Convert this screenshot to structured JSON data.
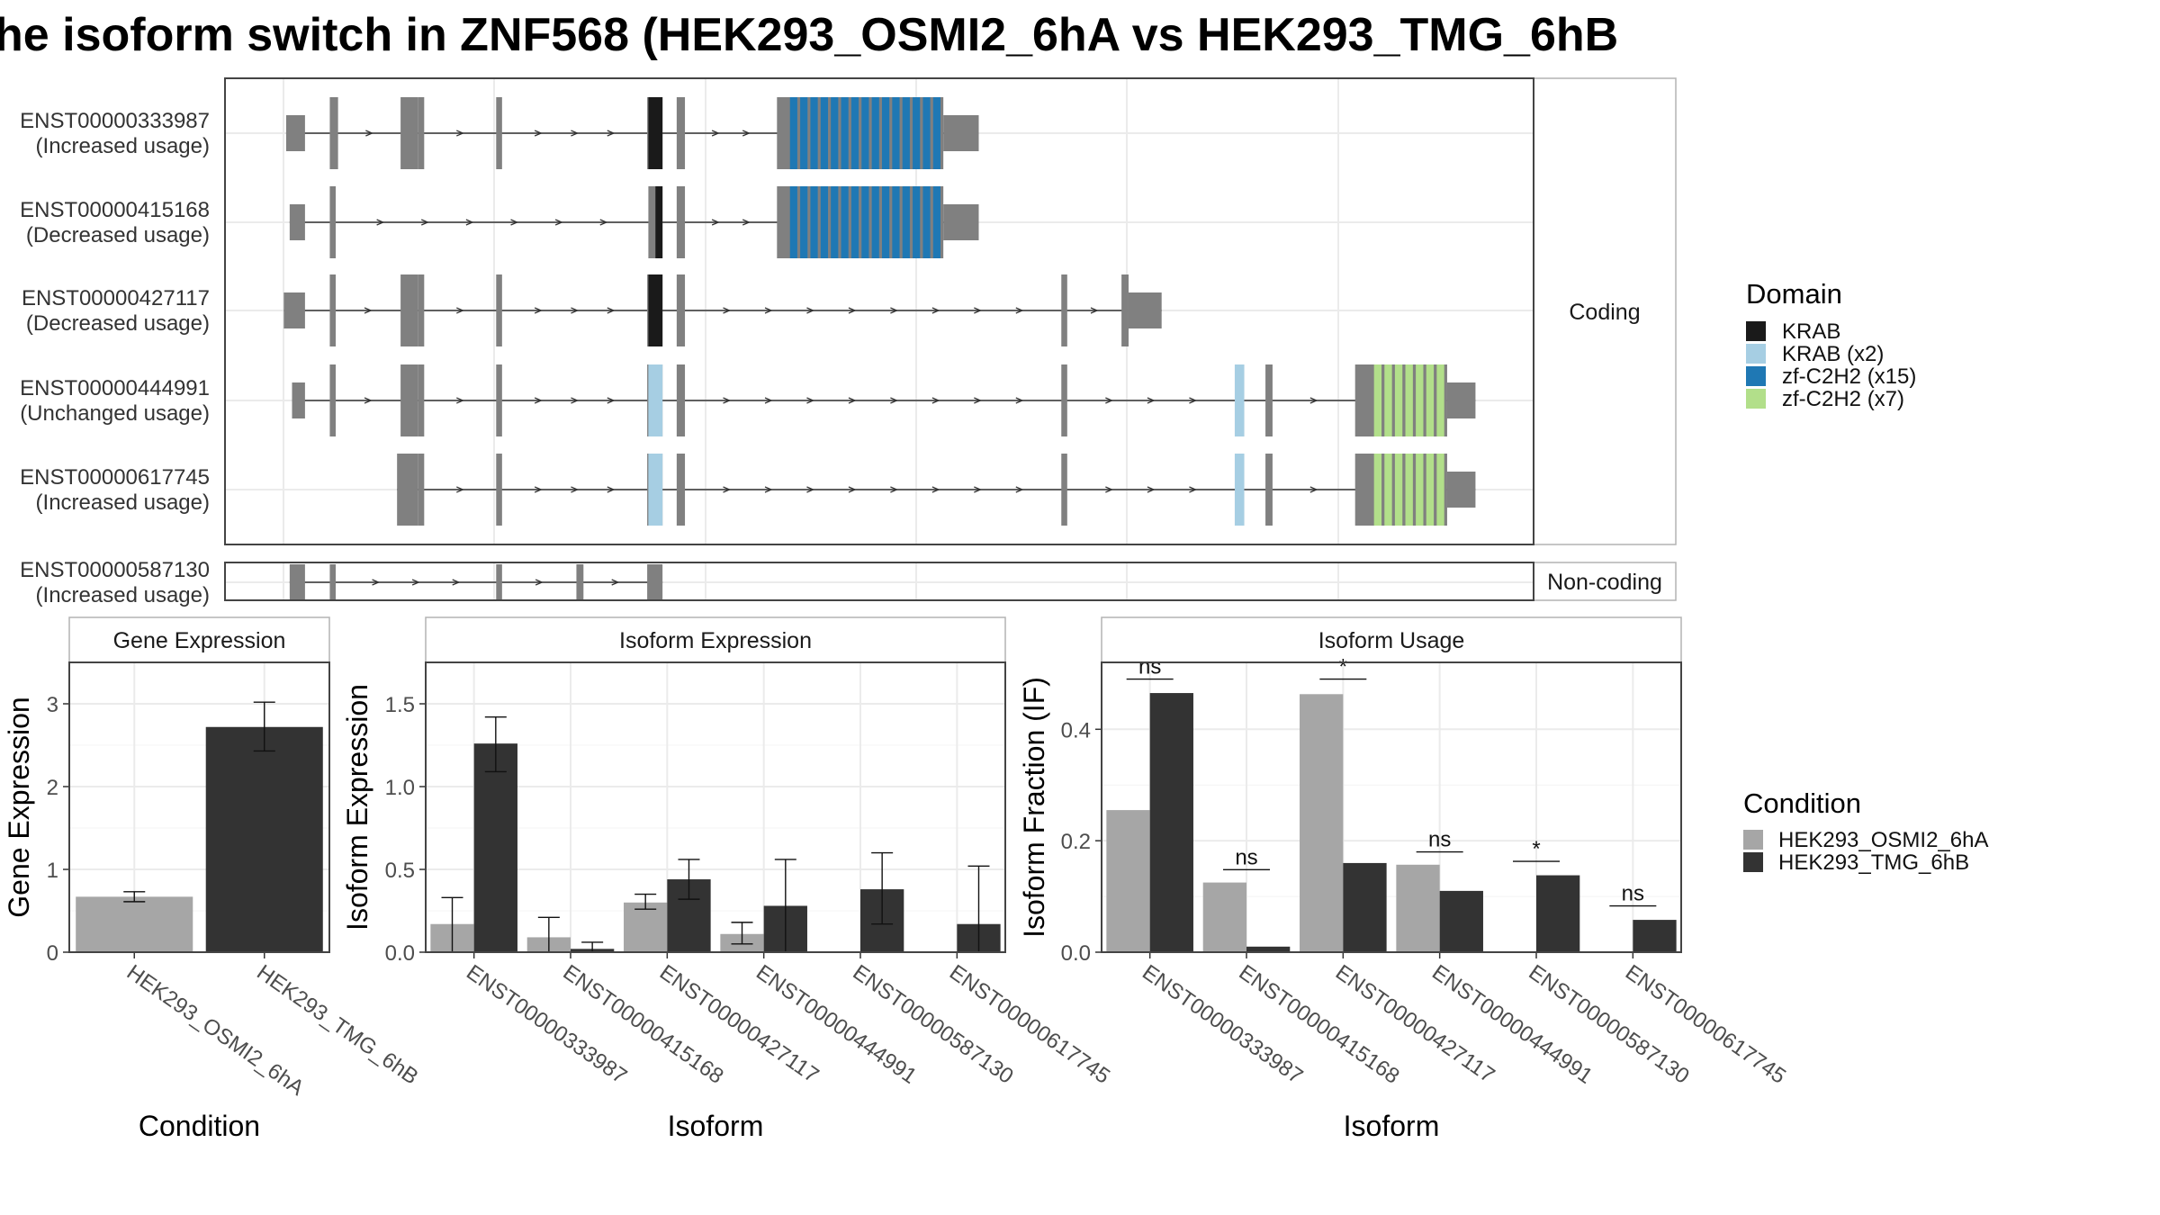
{
  "title": "he isoform switch in ZNF568 (HEK293_OSMI2_6hA vs HEK293_TMG_6hB",
  "colors": {
    "exon": "#808080",
    "panel_border": "#444444",
    "grid": "#ebebeb",
    "cond_a": "#a6a6a6",
    "cond_b": "#333333",
    "text": "#333333",
    "KRAB": "#1a1a1a",
    "KRAB (x2)": "#a6cee3",
    "zf-C2H2 (x15)": "#1f78b4",
    "zf-C2H2 (x7)": "#b2df8a"
  },
  "chart_data": [
    {
      "type": "table",
      "name": "isoform-structures",
      "x_range_units": [
        0,
        100
      ],
      "domain_legend": {
        "title": "Domain",
        "items": [
          "KRAB",
          "KRAB (x2)",
          "zf-C2H2 (x15)",
          "zf-C2H2 (x7)"
        ]
      },
      "facets": [
        "Coding",
        "Non-coding"
      ],
      "isoforms": [
        {
          "id": "ENST00000333987",
          "usage": "(Increased usage)",
          "facet": "Coding",
          "exons": [
            [
              0.3,
              1.9
            ],
            [
              4.0,
              4.7
            ],
            [
              10.0,
              11.5
            ],
            [
              11.5,
              12.0
            ],
            [
              18.1,
              18.6
            ],
            [
              30.9,
              32.2
            ],
            [
              33.4,
              34.1
            ],
            [
              41.9,
              56.0
            ],
            [
              56.0,
              59.0
            ]
          ],
          "domains": [
            {
              "name": "KRAB",
              "start": 31.0,
              "end": 32.2
            },
            {
              "name": "zf-C2H2 (x15)",
              "start": 43.0,
              "end": 56.0,
              "stripes": 15
            }
          ]
        },
        {
          "id": "ENST00000415168",
          "usage": "(Decreased usage)",
          "facet": "Coding",
          "exons": [
            [
              0.6,
              1.9
            ],
            [
              4.0,
              4.5
            ],
            [
              31.0,
              32.2
            ],
            [
              33.4,
              34.1
            ],
            [
              41.9,
              56.0
            ],
            [
              56.0,
              59.0
            ]
          ],
          "domains": [
            {
              "name": "KRAB",
              "start": 31.6,
              "end": 32.2
            },
            {
              "name": "zf-C2H2 (x15)",
              "start": 43.0,
              "end": 56.0,
              "stripes": 15
            }
          ]
        },
        {
          "id": "ENST00000427117",
          "usage": "(Decreased usage)",
          "facet": "Coding",
          "exons": [
            [
              0.1,
              1.9
            ],
            [
              4.0,
              4.5
            ],
            [
              10.0,
              11.5
            ],
            [
              11.5,
              12.0
            ],
            [
              18.1,
              18.6
            ],
            [
              30.9,
              32.2
            ],
            [
              33.4,
              34.1
            ],
            [
              66.0,
              66.5
            ],
            [
              71.1,
              71.7
            ],
            [
              71.7,
              74.5
            ]
          ],
          "domains": [
            {
              "name": "KRAB",
              "start": 31.0,
              "end": 32.2
            }
          ]
        },
        {
          "id": "ENST00000444991",
          "usage": "(Unchanged usage)",
          "facet": "Coding",
          "exons": [
            [
              0.8,
              1.9
            ],
            [
              4.0,
              4.5
            ],
            [
              10.0,
              11.5
            ],
            [
              11.5,
              12.0
            ],
            [
              18.1,
              18.6
            ],
            [
              30.9,
              32.2
            ],
            [
              33.4,
              34.1
            ],
            [
              66.0,
              66.5
            ],
            [
              80.7,
              81.5
            ],
            [
              83.3,
              83.9
            ],
            [
              90.9,
              98.7
            ],
            [
              98.7,
              101.1
            ]
          ],
          "domains": [
            {
              "name": "KRAB (x2)",
              "start": 31.0,
              "end": 32.2
            },
            {
              "name": "KRAB (x2)",
              "start": 80.7,
              "end": 81.5
            },
            {
              "name": "zf-C2H2 (x7)",
              "start": 92.5,
              "end": 98.7,
              "stripes": 7
            }
          ]
        },
        {
          "id": "ENST00000617745",
          "usage": "(Increased usage)",
          "facet": "Coding",
          "exons": [
            [
              9.7,
              11.5
            ],
            [
              11.5,
              12.0
            ],
            [
              18.1,
              18.6
            ],
            [
              30.9,
              32.2
            ],
            [
              33.4,
              34.1
            ],
            [
              66.0,
              66.5
            ],
            [
              80.7,
              81.5
            ],
            [
              83.3,
              83.9
            ],
            [
              90.9,
              98.7
            ],
            [
              98.7,
              101.1
            ]
          ],
          "domains": [
            {
              "name": "KRAB (x2)",
              "start": 31.0,
              "end": 32.2
            },
            {
              "name": "KRAB (x2)",
              "start": 80.7,
              "end": 81.5
            },
            {
              "name": "zf-C2H2 (x7)",
              "start": 92.5,
              "end": 98.7,
              "stripes": 7
            }
          ]
        },
        {
          "id": "ENST00000587130",
          "usage": "(Increased usage)",
          "facet": "Non-coding",
          "exons": [
            [
              0.6,
              1.9
            ],
            [
              4.0,
              4.5
            ],
            [
              18.1,
              18.6
            ],
            [
              24.9,
              25.5
            ],
            [
              30.9,
              32.2
            ]
          ],
          "domains": []
        }
      ]
    },
    {
      "type": "bar",
      "name": "gene-expression",
      "strip": "Gene Expression",
      "xlabel": "Condition",
      "ylabel": "Gene Expression",
      "ylim": [
        0,
        3.5
      ],
      "yticks": [
        0,
        1,
        2,
        3
      ],
      "categories": [
        "HEK293_OSMI2_6hA",
        "HEK293_TMG_6hB"
      ],
      "values": [
        0.67,
        2.72
      ],
      "errors": [
        [
          0.61,
          0.73
        ],
        [
          2.43,
          3.02
        ]
      ]
    },
    {
      "type": "bar",
      "name": "isoform-expression",
      "strip": "Isoform Expression",
      "xlabel": "Isoform",
      "ylabel": "Isoform Expression",
      "ylim": [
        0,
        1.75
      ],
      "yticks": [
        0.0,
        0.5,
        1.0,
        1.5
      ],
      "categories": [
        "ENST00000333987",
        "ENST00000415168",
        "ENST00000427117",
        "ENST00000444991",
        "ENST00000587130",
        "ENST00000617745"
      ],
      "series": [
        {
          "name": "HEK293_OSMI2_6hA",
          "values": [
            0.17,
            0.09,
            0.3,
            0.11,
            0.0,
            0.0
          ],
          "errors": [
            [
              0.0,
              0.33
            ],
            [
              0.0,
              0.21
            ],
            [
              0.26,
              0.35
            ],
            [
              0.05,
              0.18
            ],
            [
              0.0,
              0.0
            ],
            [
              0.0,
              0.0
            ]
          ]
        },
        {
          "name": "HEK293_TMG_6hB",
          "values": [
            1.26,
            0.02,
            0.44,
            0.28,
            0.38,
            0.17
          ],
          "errors": [
            [
              1.09,
              1.42
            ],
            [
              0.0,
              0.06
            ],
            [
              0.32,
              0.56
            ],
            [
              0.0,
              0.56
            ],
            [
              0.17,
              0.6
            ],
            [
              0.0,
              0.52
            ]
          ]
        }
      ]
    },
    {
      "type": "bar",
      "name": "isoform-usage",
      "strip": "Isoform Usage",
      "xlabel": "Isoform",
      "ylabel": "Isoform Fraction (IF)",
      "ylim": [
        0,
        0.52
      ],
      "yticks": [
        0.0,
        0.2,
        0.4
      ],
      "categories": [
        "ENST00000333987",
        "ENST00000415168",
        "ENST00000427117",
        "ENST00000444991",
        "ENST00000587130",
        "ENST00000617745"
      ],
      "series": [
        {
          "name": "HEK293_OSMI2_6hA",
          "values": [
            0.255,
            0.125,
            0.463,
            0.157,
            0.0,
            0.0
          ]
        },
        {
          "name": "HEK293_TMG_6hB",
          "values": [
            0.465,
            0.01,
            0.16,
            0.11,
            0.138,
            0.058
          ]
        }
      ],
      "significance": [
        "ns",
        "ns",
        "*",
        "ns",
        "*",
        "ns"
      ],
      "significance_y": [
        0.49,
        0.148,
        0.49,
        0.18,
        0.163,
        0.083
      ]
    }
  ],
  "legend_condition": {
    "title": "Condition",
    "items": [
      "HEK293_OSMI2_6hA",
      "HEK293_TMG_6hB"
    ]
  }
}
